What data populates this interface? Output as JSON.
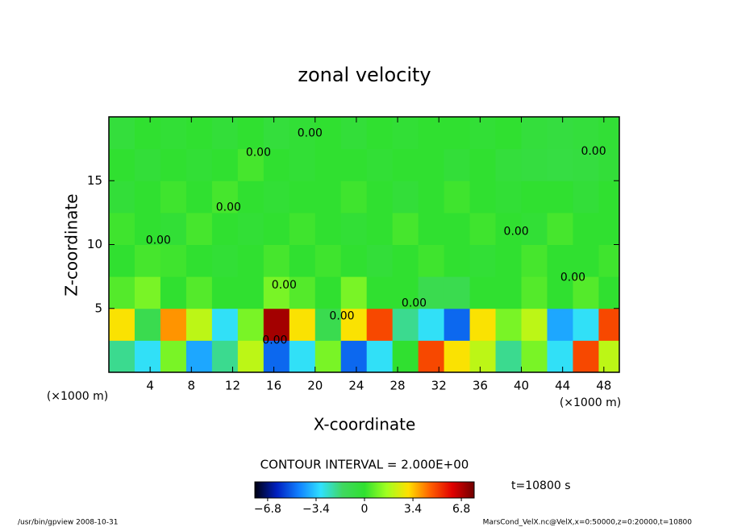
{
  "chart_data": {
    "type": "heatmap",
    "title": "zonal velocity",
    "x_label": "X-coordinate",
    "y_label": "Z-coordinate",
    "x_unit": "(×1000 m)",
    "y_unit": "(×1000 m)",
    "x": [
      1.25,
      3.75,
      6.25,
      8.75,
      11.25,
      13.75,
      16.25,
      18.75,
      21.25,
      23.75,
      26.25,
      28.75,
      31.25,
      33.75,
      36.25,
      38.75,
      41.25,
      43.75,
      46.25,
      48.75
    ],
    "z": [
      1.25,
      3.75,
      6.25,
      8.75,
      11.25,
      13.75,
      16.25,
      18.75
    ],
    "values": [
      [
        -2,
        -3,
        1,
        -4,
        -2,
        2,
        -5,
        -3,
        1,
        -5,
        -3,
        0,
        5,
        3,
        2,
        -2,
        1,
        -3,
        5,
        2
      ],
      [
        3,
        -1,
        4,
        2,
        -3,
        1,
        7,
        3,
        -1,
        3,
        5,
        -2,
        -3,
        -5,
        3,
        1,
        2,
        -4,
        -3,
        5
      ],
      [
        0.5,
        1,
        0,
        0.5,
        0,
        0,
        1,
        0.5,
        0,
        1,
        0,
        0,
        -1,
        -1,
        0,
        0,
        0.5,
        0,
        0.5,
        0
      ],
      [
        0,
        0.3,
        0.2,
        0,
        -0.2,
        0,
        0.3,
        0,
        0.2,
        0,
        -0.3,
        0,
        0.2,
        0,
        -0.2,
        0,
        0.3,
        0,
        0,
        0.2
      ],
      [
        0.2,
        0,
        -0.2,
        0.3,
        0,
        -0.2,
        0,
        0.2,
        0,
        -0.2,
        0,
        0.3,
        0,
        0,
        0.2,
        0,
        -0.2,
        0.3,
        0,
        0
      ],
      [
        -0.3,
        0,
        0.2,
        0,
        0.3,
        0,
        -0.2,
        0,
        0,
        0.2,
        0,
        -0.3,
        0,
        0.2,
        0,
        -0.2,
        0,
        0,
        -0.3,
        0
      ],
      [
        0,
        -0.3,
        0,
        -0.2,
        0,
        0.3,
        0,
        -0.2,
        0,
        0,
        -0.2,
        0,
        0,
        -0.3,
        0,
        -0.4,
        -0.5,
        -0.6,
        -0.5,
        -0.3
      ],
      [
        -0.4,
        0,
        -0.2,
        0,
        -0.3,
        0,
        -0.4,
        -0.2,
        0,
        -0.3,
        0,
        -0.2,
        0,
        0,
        -0.2,
        0,
        -0.4,
        -0.5,
        -0.4,
        -0.2
      ]
    ],
    "xlim": [
      0,
      49.5
    ],
    "ylim": [
      0,
      20
    ],
    "xticks": [
      4,
      8,
      12,
      16,
      20,
      24,
      28,
      32,
      36,
      40,
      44,
      48
    ],
    "yticks": [
      5,
      10,
      15
    ],
    "contour_labels": [
      {
        "label": "0.00",
        "x": 19.5,
        "z": 18.7
      },
      {
        "label": "0.00",
        "x": 14.5,
        "z": 17.2
      },
      {
        "label": "0.00",
        "x": 47,
        "z": 17.3
      },
      {
        "label": "0.00",
        "x": 11.6,
        "z": 12.9
      },
      {
        "label": "0.00",
        "x": 4.8,
        "z": 10.3
      },
      {
        "label": "0.00",
        "x": 39.5,
        "z": 11
      },
      {
        "label": "0.00",
        "x": 17,
        "z": 6.8
      },
      {
        "label": "0.00",
        "x": 45,
        "z": 7.4
      },
      {
        "label": "0.00",
        "x": 22.6,
        "z": 4.4
      },
      {
        "label": "0.00",
        "x": 29.6,
        "z": 5.4
      },
      {
        "label": "0.00",
        "x": 16.1,
        "z": 2.5
      }
    ],
    "contour_interval": "CONTOUR INTERVAL = 2.000E+00",
    "time_label": "t=10800 s",
    "clim": [
      -7.7,
      7.7
    ],
    "cticks": [
      {
        "value": -6.8,
        "label": "−6.8"
      },
      {
        "value": -3.4,
        "label": "−3.4"
      },
      0,
      3.4,
      6.8
    ],
    "colormap": [
      "#000010",
      "#0020c0",
      "#1080ff",
      "#30e0ff",
      "#40d860",
      "#30e030",
      "#a0ff20",
      "#ffe000",
      "#ff6000",
      "#e00000",
      "#700000"
    ],
    "footer_left": "/usr/bin/gpview   2008-10-31",
    "footer_right": "MarsCond_VelX.nc@VelX,x=0:50000,z=0:20000,t=10800"
  }
}
